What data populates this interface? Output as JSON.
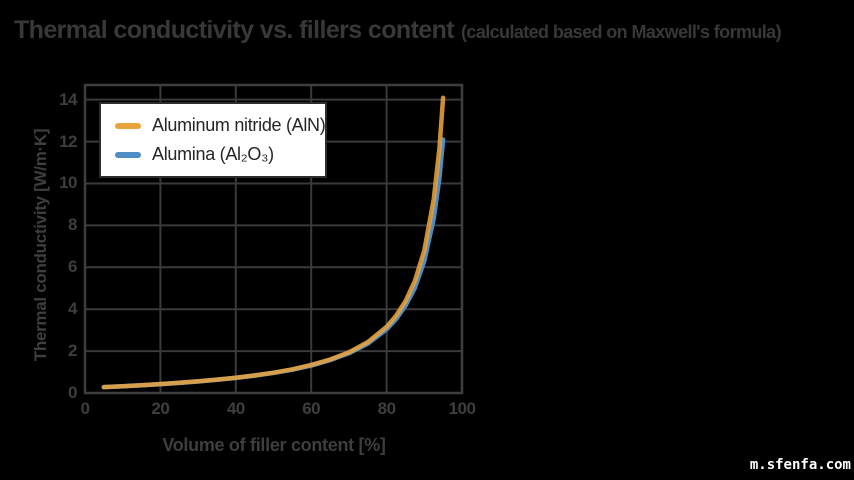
{
  "page": {
    "title_main": "Thermal conductivity vs. fillers content",
    "title_note": "(calculated based on Maxwell's formula)",
    "watermark": "m.sfenfa.com"
  },
  "colors": {
    "background": "#000000",
    "title_text": "#383838",
    "grid": "#3a3a3a",
    "spine": "#3e3e3e",
    "tick_text": "#3e3e3e",
    "legend_bg": "#ffffff",
    "legend_border": "#2d2d2d",
    "legend_text": "#262626",
    "watermark_text": "#ffffff"
  },
  "chart_data": {
    "type": "line",
    "title": "Thermal conductivity vs. fillers content (calculated based on Maxwell's formula)",
    "xlabel": "Volume of filler content [%]",
    "ylabel": "Thermal conductivity [W/m·K]",
    "xlim": [
      0,
      100
    ],
    "ylim": [
      0,
      14.7
    ],
    "x_ticks": [
      0,
      20,
      40,
      60,
      80,
      100
    ],
    "y_ticks": [
      0,
      2,
      4,
      6,
      8,
      10,
      12,
      14
    ],
    "grid": true,
    "legend_position": "upper left",
    "x": [
      5,
      10,
      15,
      20,
      25,
      30,
      35,
      40,
      45,
      50,
      55,
      60,
      65,
      70,
      75,
      80,
      82.5,
      85,
      87.5,
      90,
      92.5,
      94,
      95
    ],
    "series": [
      {
        "name": "Aluminum nitride (AlN)",
        "color": "#e8a33c",
        "values": [
          0.28,
          0.32,
          0.37,
          0.43,
          0.49,
          0.56,
          0.64,
          0.73,
          0.84,
          0.97,
          1.13,
          1.34,
          1.6,
          1.94,
          2.43,
          3.16,
          3.68,
          4.37,
          5.35,
          6.8,
          9.23,
          11.66,
          14.09
        ]
      },
      {
        "name": "Alumina (Al₂O₃)",
        "color": "#4f8ec4",
        "values": [
          0.28,
          0.32,
          0.37,
          0.42,
          0.48,
          0.55,
          0.63,
          0.72,
          0.83,
          0.96,
          1.11,
          1.31,
          1.57,
          1.9,
          2.36,
          3.04,
          3.52,
          4.16,
          5.02,
          6.3,
          8.33,
          10.26,
          12.1
        ]
      }
    ]
  }
}
